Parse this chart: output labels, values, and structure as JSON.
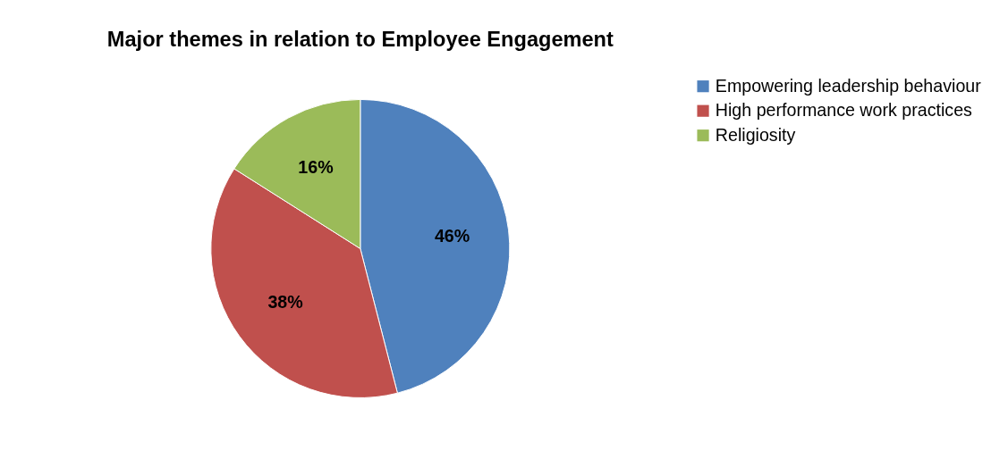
{
  "chart_data": {
    "type": "pie",
    "title": "Major themes in relation to Employee Engagement",
    "categories": [
      "Empowering leadership behaviour",
      "High performance work practices",
      "Religiosity"
    ],
    "values": [
      46,
      38,
      16
    ],
    "colors": [
      "#4f81bd",
      "#c0504d",
      "#9bbb59"
    ],
    "value_labels": [
      "46%",
      "38%",
      "16%"
    ],
    "legend": "right"
  }
}
